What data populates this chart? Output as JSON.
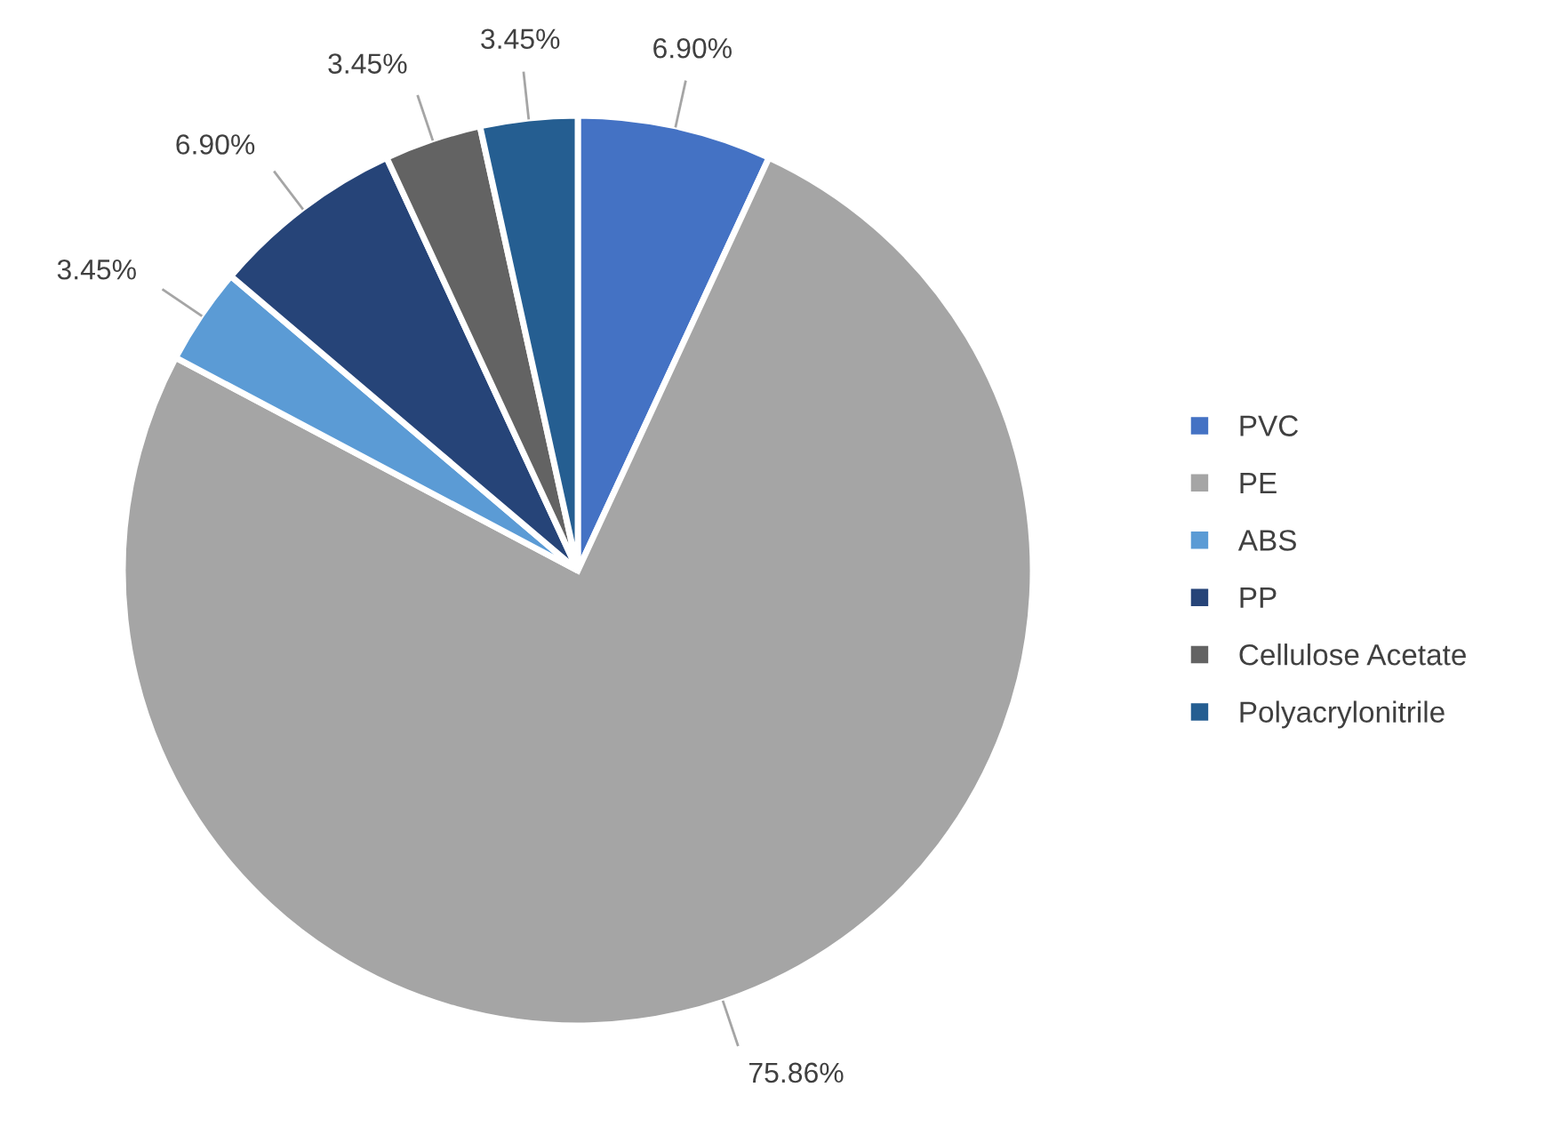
{
  "chart_data": {
    "type": "pie",
    "categories": [
      "PVC",
      "PE",
      "ABS",
      "PP",
      "Cellulose Acetate",
      "Polyacrylonitrile"
    ],
    "values": [
      6.9,
      75.86,
      3.45,
      6.9,
      3.45,
      3.45
    ],
    "value_labels": [
      "6.90%",
      "75.86%",
      "3.45%",
      "6.90%",
      "3.45%",
      "3.45%"
    ],
    "colors": [
      "#4472c4",
      "#a5a5a5",
      "#5b9bd5",
      "#264478",
      "#636363",
      "#255e91"
    ],
    "legend": "right"
  }
}
